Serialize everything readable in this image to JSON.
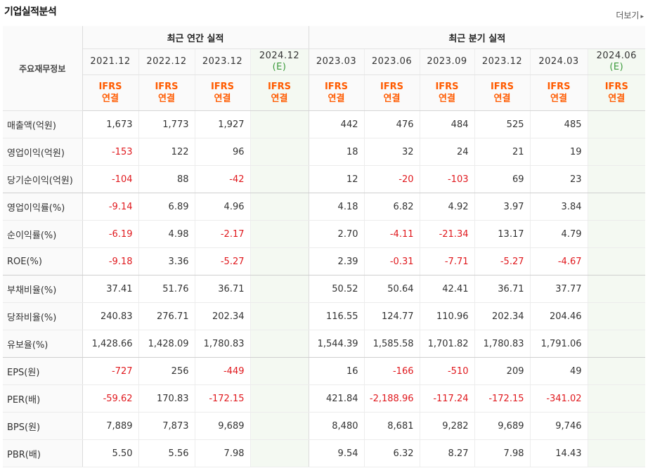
{
  "title": "기업실적분석",
  "more_label": "더보기",
  "annual_header": "최근 연간 실적",
  "quarter_header": "최근 분기 실적",
  "row_header_label": "주요재무정보",
  "periods": [
    {
      "label": "2021.12",
      "est": ""
    },
    {
      "label": "2022.12",
      "est": ""
    },
    {
      "label": "2023.12",
      "est": ""
    },
    {
      "label": "2024.12",
      "est": "(E)"
    },
    {
      "label": "2023.03",
      "est": ""
    },
    {
      "label": "2023.06",
      "est": ""
    },
    {
      "label": "2023.09",
      "est": ""
    },
    {
      "label": "2023.12",
      "est": ""
    },
    {
      "label": "2024.03",
      "est": ""
    },
    {
      "label": "2024.06",
      "est": "(E)"
    }
  ],
  "ifrs_top": "IFRS",
  "ifrs_bottom": "연결",
  "rows": [
    {
      "label": "매출액(억원)",
      "values": [
        "1,673",
        "1,773",
        "1,927",
        "",
        "442",
        "476",
        "484",
        "525",
        "485",
        ""
      ]
    },
    {
      "label": "영업이익(억원)",
      "values": [
        "-153",
        "122",
        "96",
        "",
        "18",
        "32",
        "24",
        "21",
        "19",
        ""
      ]
    },
    {
      "label": "당기순이익(억원)",
      "values": [
        "-104",
        "88",
        "-42",
        "",
        "12",
        "-20",
        "-103",
        "69",
        "23",
        ""
      ]
    },
    {
      "label": "영업이익률(%)",
      "values": [
        "-9.14",
        "6.89",
        "4.96",
        "",
        "4.18",
        "6.82",
        "4.92",
        "3.97",
        "3.84",
        ""
      ]
    },
    {
      "label": "순이익률(%)",
      "values": [
        "-6.19",
        "4.98",
        "-2.17",
        "",
        "2.70",
        "-4.11",
        "-21.34",
        "13.17",
        "4.79",
        ""
      ]
    },
    {
      "label": "ROE(%)",
      "values": [
        "-9.18",
        "3.36",
        "-5.27",
        "",
        "2.39",
        "-0.31",
        "-7.71",
        "-5.27",
        "-4.67",
        ""
      ]
    },
    {
      "label": "부채비율(%)",
      "values": [
        "37.41",
        "51.76",
        "36.71",
        "",
        "50.52",
        "50.64",
        "42.41",
        "36.71",
        "37.77",
        ""
      ]
    },
    {
      "label": "당좌비율(%)",
      "values": [
        "240.83",
        "276.71",
        "202.34",
        "",
        "116.55",
        "124.77",
        "110.96",
        "202.34",
        "204.46",
        ""
      ]
    },
    {
      "label": "유보율(%)",
      "values": [
        "1,428.66",
        "1,428.09",
        "1,780.83",
        "",
        "1,544.39",
        "1,585.58",
        "1,701.82",
        "1,780.83",
        "1,791.06",
        ""
      ]
    },
    {
      "label": "EPS(원)",
      "values": [
        "-727",
        "256",
        "-449",
        "",
        "16",
        "-166",
        "-510",
        "209",
        "49",
        ""
      ]
    },
    {
      "label": "PER(배)",
      "values": [
        "-59.62",
        "170.83",
        "-172.15",
        "",
        "421.84",
        "-2,188.96",
        "-117.24",
        "-172.15",
        "-341.02",
        ""
      ]
    },
    {
      "label": "BPS(원)",
      "values": [
        "7,889",
        "7,873",
        "9,689",
        "",
        "8,480",
        "8,681",
        "9,282",
        "9,689",
        "9,746",
        ""
      ]
    },
    {
      "label": "PBR(배)",
      "values": [
        "5.50",
        "5.56",
        "7.98",
        "",
        "9.54",
        "6.32",
        "8.27",
        "7.98",
        "14.43",
        ""
      ]
    }
  ]
}
